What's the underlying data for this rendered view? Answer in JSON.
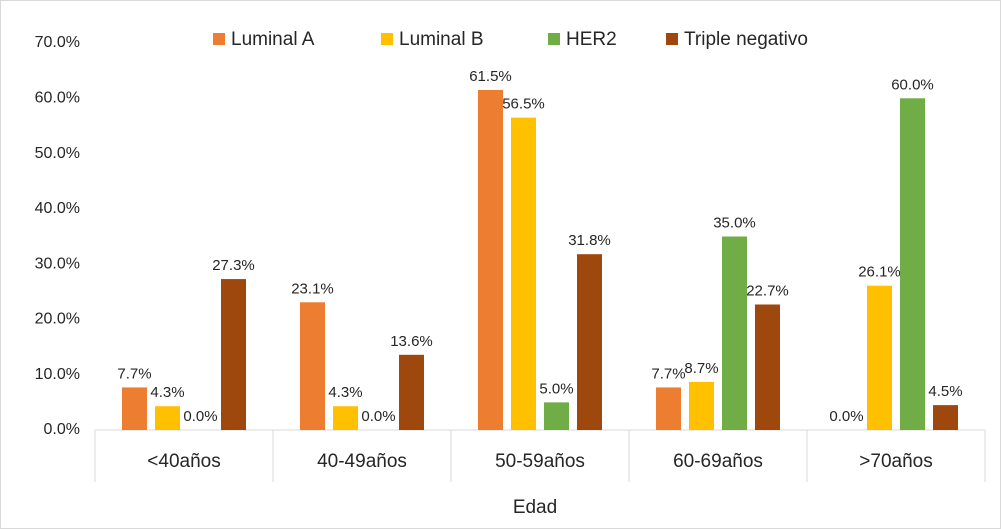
{
  "chart_data": {
    "type": "bar",
    "x_label": "Edad",
    "categories": [
      "<40años",
      "40-49años",
      "50-59años",
      "60-69años",
      ">70años"
    ],
    "series": [
      {
        "name": "Luminal A",
        "color": "#ed7d31",
        "values": [
          7.7,
          23.1,
          61.5,
          7.7,
          0.0
        ],
        "value_labels": [
          "7.7%",
          "23.1%",
          "61.5%",
          "7.7%",
          "0.0%"
        ]
      },
      {
        "name": "Luminal B",
        "color": "#ffc000",
        "values": [
          4.3,
          4.3,
          56.5,
          8.7,
          26.1
        ],
        "value_labels": [
          "4.3%",
          "4.3%",
          "56.5%",
          "8.7%",
          "26.1%"
        ]
      },
      {
        "name": "HER2",
        "color": "#70ad47",
        "values": [
          0.0,
          0.0,
          5.0,
          35.0,
          60.0
        ],
        "value_labels": [
          "0.0%",
          "0.0%",
          "5.0%",
          "35.0%",
          "60.0%"
        ]
      },
      {
        "name": "Triple negativo",
        "color": "#9e480e",
        "values": [
          27.3,
          13.6,
          31.8,
          22.7,
          4.5
        ],
        "value_labels": [
          "27.3%",
          "13.6%",
          "31.8%",
          "22.7%",
          "4.5%"
        ]
      }
    ],
    "ylim": [
      0,
      70
    ],
    "yticks": [
      {
        "value": 0,
        "label": "0.0%"
      },
      {
        "value": 10,
        "label": "10.0%"
      },
      {
        "value": 20,
        "label": "20.0%"
      },
      {
        "value": 30,
        "label": "30.0%"
      },
      {
        "value": 40,
        "label": "40.0%"
      },
      {
        "value": 50,
        "label": "50.0%"
      },
      {
        "value": 60,
        "label": "60.0%"
      },
      {
        "value": 70,
        "label": "70.0%"
      }
    ],
    "grid": false,
    "legend": "top"
  }
}
